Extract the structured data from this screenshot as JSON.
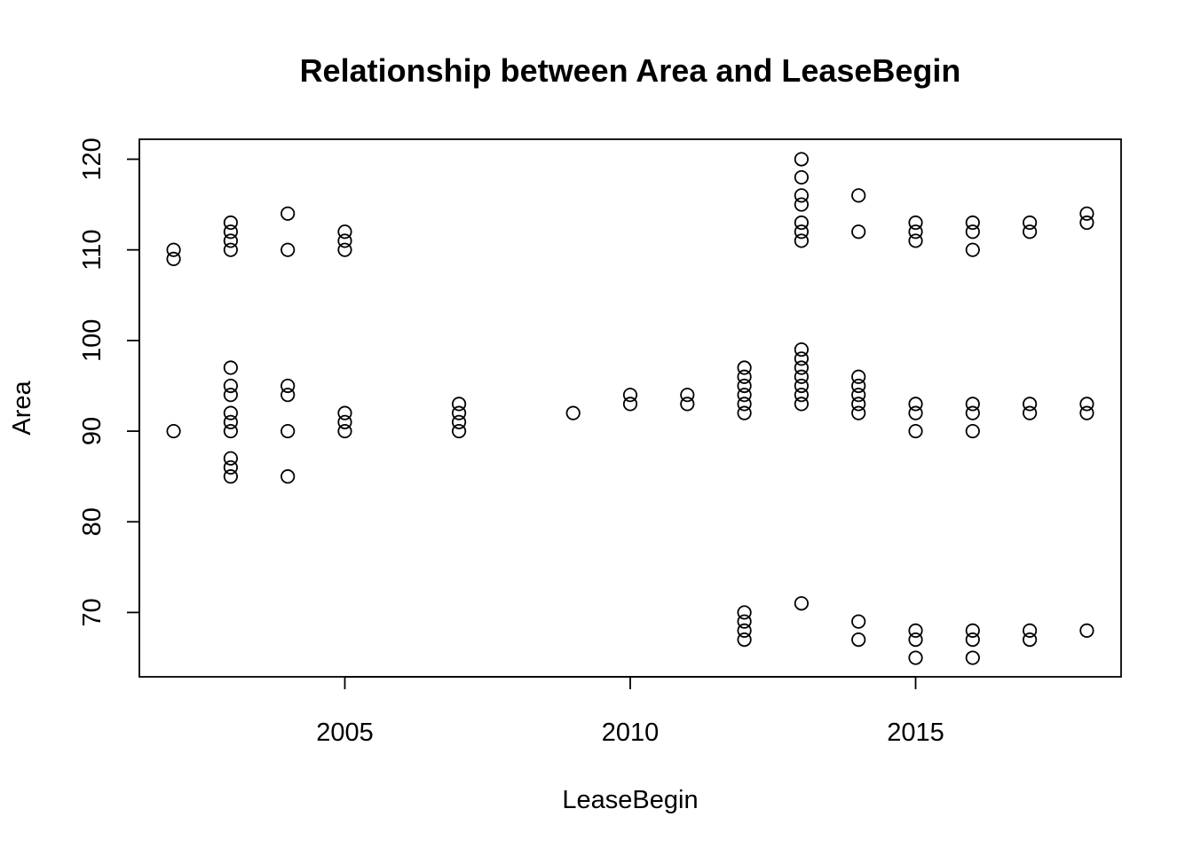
{
  "chart_data": {
    "type": "scatter",
    "title": "Relationship between Area and LeaseBegin",
    "xlabel": "LeaseBegin",
    "ylabel": "Area",
    "xlim": [
      2001.4,
      2018.6
    ],
    "ylim": [
      62.9,
      122.2
    ],
    "xticks": [
      2005,
      2010,
      2015
    ],
    "yticks": [
      70,
      80,
      90,
      100,
      110,
      120
    ],
    "grid": false,
    "legend": "none",
    "marker": "open-circle",
    "points": [
      {
        "x": 2002,
        "y": 110
      },
      {
        "x": 2002,
        "y": 109
      },
      {
        "x": 2002,
        "y": 90
      },
      {
        "x": 2003,
        "y": 113
      },
      {
        "x": 2003,
        "y": 112
      },
      {
        "x": 2003,
        "y": 111
      },
      {
        "x": 2003,
        "y": 110
      },
      {
        "x": 2003,
        "y": 97
      },
      {
        "x": 2003,
        "y": 95
      },
      {
        "x": 2003,
        "y": 94
      },
      {
        "x": 2003,
        "y": 92
      },
      {
        "x": 2003,
        "y": 91
      },
      {
        "x": 2003,
        "y": 90
      },
      {
        "x": 2003,
        "y": 87
      },
      {
        "x": 2003,
        "y": 86
      },
      {
        "x": 2003,
        "y": 85
      },
      {
        "x": 2004,
        "y": 114
      },
      {
        "x": 2004,
        "y": 110
      },
      {
        "x": 2004,
        "y": 95
      },
      {
        "x": 2004,
        "y": 94
      },
      {
        "x": 2004,
        "y": 90
      },
      {
        "x": 2004,
        "y": 85
      },
      {
        "x": 2005,
        "y": 112
      },
      {
        "x": 2005,
        "y": 111
      },
      {
        "x": 2005,
        "y": 110
      },
      {
        "x": 2005,
        "y": 92
      },
      {
        "x": 2005,
        "y": 91
      },
      {
        "x": 2005,
        "y": 90
      },
      {
        "x": 2007,
        "y": 93
      },
      {
        "x": 2007,
        "y": 92
      },
      {
        "x": 2007,
        "y": 91
      },
      {
        "x": 2007,
        "y": 90
      },
      {
        "x": 2009,
        "y": 92
      },
      {
        "x": 2010,
        "y": 94
      },
      {
        "x": 2010,
        "y": 93
      },
      {
        "x": 2011,
        "y": 94
      },
      {
        "x": 2011,
        "y": 93
      },
      {
        "x": 2012,
        "y": 97
      },
      {
        "x": 2012,
        "y": 96
      },
      {
        "x": 2012,
        "y": 95
      },
      {
        "x": 2012,
        "y": 94
      },
      {
        "x": 2012,
        "y": 93
      },
      {
        "x": 2012,
        "y": 92
      },
      {
        "x": 2012,
        "y": 70
      },
      {
        "x": 2012,
        "y": 69
      },
      {
        "x": 2012,
        "y": 68
      },
      {
        "x": 2012,
        "y": 67
      },
      {
        "x": 2013,
        "y": 120
      },
      {
        "x": 2013,
        "y": 118
      },
      {
        "x": 2013,
        "y": 116
      },
      {
        "x": 2013,
        "y": 115
      },
      {
        "x": 2013,
        "y": 113
      },
      {
        "x": 2013,
        "y": 112
      },
      {
        "x": 2013,
        "y": 111
      },
      {
        "x": 2013,
        "y": 99
      },
      {
        "x": 2013,
        "y": 98
      },
      {
        "x": 2013,
        "y": 97
      },
      {
        "x": 2013,
        "y": 96
      },
      {
        "x": 2013,
        "y": 95
      },
      {
        "x": 2013,
        "y": 94
      },
      {
        "x": 2013,
        "y": 93
      },
      {
        "x": 2013,
        "y": 71
      },
      {
        "x": 2014,
        "y": 116
      },
      {
        "x": 2014,
        "y": 112
      },
      {
        "x": 2014,
        "y": 96
      },
      {
        "x": 2014,
        "y": 95
      },
      {
        "x": 2014,
        "y": 94
      },
      {
        "x": 2014,
        "y": 93
      },
      {
        "x": 2014,
        "y": 92
      },
      {
        "x": 2014,
        "y": 69
      },
      {
        "x": 2014,
        "y": 67
      },
      {
        "x": 2015,
        "y": 113
      },
      {
        "x": 2015,
        "y": 112
      },
      {
        "x": 2015,
        "y": 111
      },
      {
        "x": 2015,
        "y": 93
      },
      {
        "x": 2015,
        "y": 92
      },
      {
        "x": 2015,
        "y": 90
      },
      {
        "x": 2015,
        "y": 68
      },
      {
        "x": 2015,
        "y": 67
      },
      {
        "x": 2015,
        "y": 65
      },
      {
        "x": 2016,
        "y": 113
      },
      {
        "x": 2016,
        "y": 112
      },
      {
        "x": 2016,
        "y": 110
      },
      {
        "x": 2016,
        "y": 93
      },
      {
        "x": 2016,
        "y": 92
      },
      {
        "x": 2016,
        "y": 90
      },
      {
        "x": 2016,
        "y": 68
      },
      {
        "x": 2016,
        "y": 67
      },
      {
        "x": 2016,
        "y": 65
      },
      {
        "x": 2017,
        "y": 113
      },
      {
        "x": 2017,
        "y": 112
      },
      {
        "x": 2017,
        "y": 93
      },
      {
        "x": 2017,
        "y": 92
      },
      {
        "x": 2017,
        "y": 68
      },
      {
        "x": 2017,
        "y": 67
      },
      {
        "x": 2018,
        "y": 114
      },
      {
        "x": 2018,
        "y": 113
      },
      {
        "x": 2018,
        "y": 93
      },
      {
        "x": 2018,
        "y": 92
      },
      {
        "x": 2018,
        "y": 68
      }
    ]
  }
}
